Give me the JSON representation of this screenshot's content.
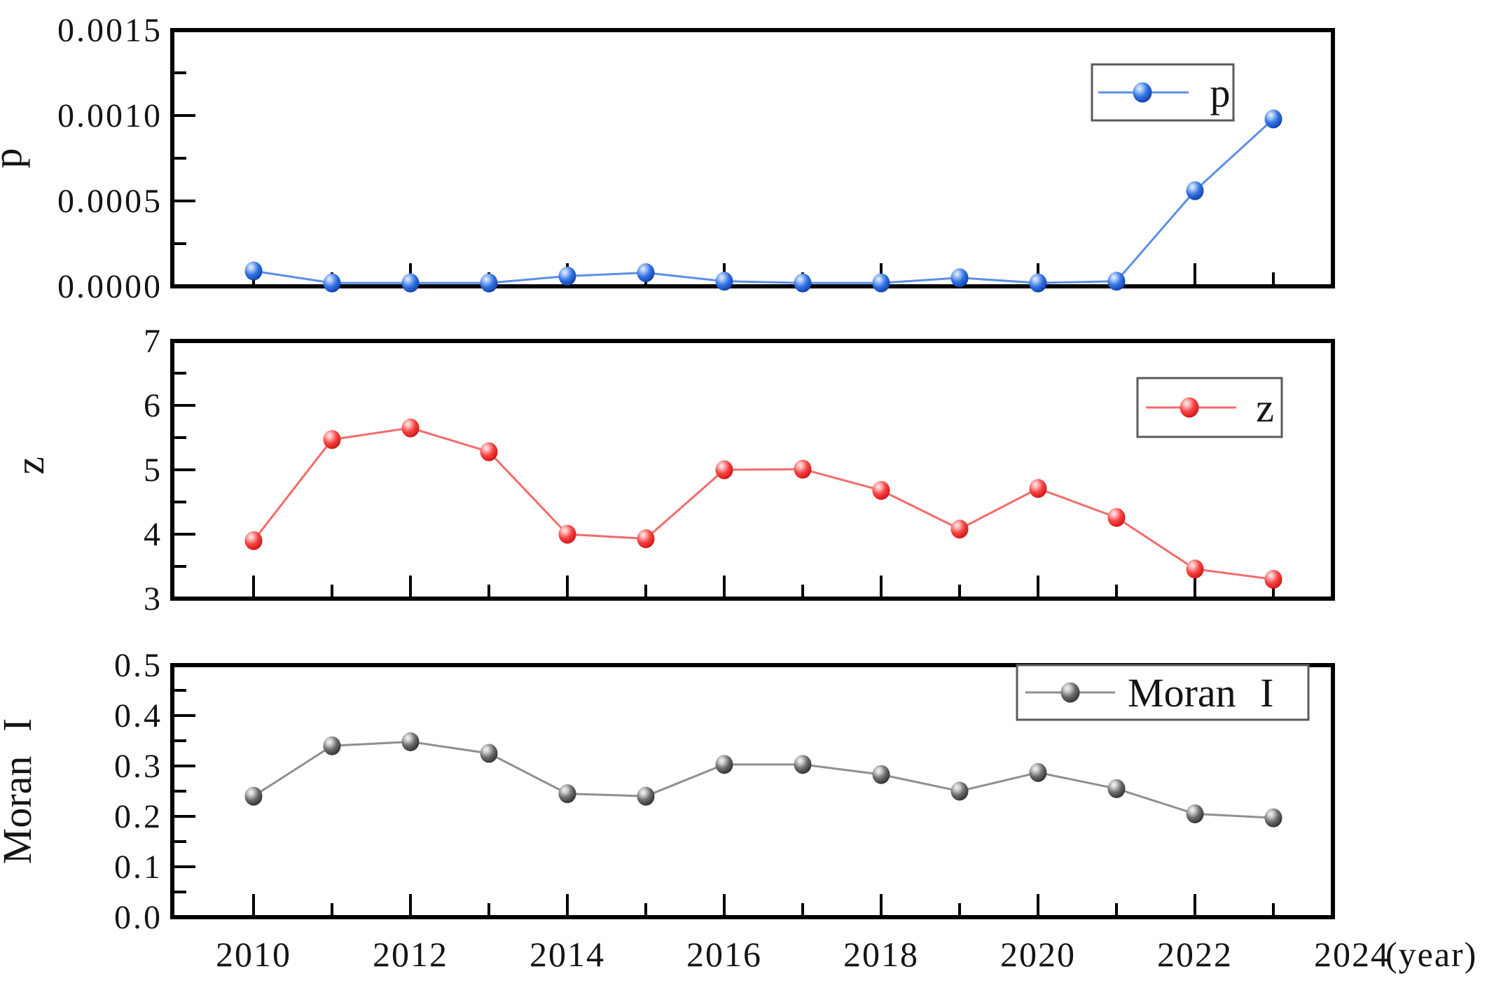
{
  "background_color": "#ffffff",
  "x_axis": {
    "years": [
      2010,
      2011,
      2012,
      2013,
      2014,
      2015,
      2016,
      2017,
      2018,
      2019,
      2020,
      2021,
      2022,
      2023
    ],
    "major_tick_years": [
      2010,
      2012,
      2014,
      2016,
      2018,
      2020,
      2022,
      2024
    ],
    "minor_tick_years": [
      2011,
      2013,
      2015,
      2017,
      2019,
      2021,
      2023
    ],
    "tick_labels": [
      "2010",
      "2012",
      "2014",
      "2016",
      "2018",
      "2020",
      "2022",
      "2024"
    ],
    "unit_label": "(year)",
    "xlim": [
      2009,
      2024
    ]
  },
  "chart_data": [
    {
      "type": "line",
      "name": "p",
      "ylabel": "p",
      "legend": {
        "label": "p",
        "position": "top-right"
      },
      "x": [
        2010,
        2011,
        2012,
        2013,
        2014,
        2015,
        2016,
        2017,
        2018,
        2019,
        2020,
        2021,
        2022,
        2023
      ],
      "y": [
        9e-05,
        2e-05,
        2e-05,
        2e-05,
        6e-05,
        8e-05,
        3e-05,
        2e-05,
        2e-05,
        5e-05,
        2e-05,
        3e-05,
        0.00056,
        0.00098
      ],
      "ylim": [
        0,
        0.0015
      ],
      "yticks": [
        0,
        0.0005,
        0.001,
        0.0015
      ],
      "ytick_labels": [
        "0.0000",
        "0.0005",
        "0.0010",
        "0.0015"
      ],
      "yticks_minor": [
        0.00025,
        0.00075,
        0.00125
      ],
      "grid": false,
      "colors": {
        "marker": "#2365e0",
        "marker_gradient": [
          "#eaf2ff",
          "#a6c4f6",
          "#3474e4",
          "#1c53c2",
          "#123f9c"
        ],
        "line": "#5b8fe8"
      }
    },
    {
      "type": "line",
      "name": "z",
      "ylabel": "z",
      "legend": {
        "label": "z",
        "position": "top-right"
      },
      "x": [
        2010,
        2011,
        2012,
        2013,
        2014,
        2015,
        2016,
        2017,
        2018,
        2019,
        2020,
        2021,
        2022,
        2023
      ],
      "y": [
        3.9,
        5.47,
        5.65,
        5.28,
        4.0,
        3.93,
        5.0,
        5.01,
        4.68,
        4.08,
        4.71,
        4.26,
        3.46,
        3.3
      ],
      "ylim": [
        3,
        7
      ],
      "yticks": [
        3,
        4,
        5,
        6,
        7
      ],
      "ytick_labels": [
        "3",
        "4",
        "5",
        "6",
        "7"
      ],
      "yticks_minor": [
        3.5,
        4.5,
        5.5,
        6.5
      ],
      "grid": false,
      "colors": {
        "marker": "#f23434",
        "marker_gradient": [
          "#ffeeee",
          "#ffb3b3",
          "#f54343",
          "#e32424",
          "#c21616"
        ],
        "line": "#f56a6a"
      }
    },
    {
      "type": "line",
      "name": "moran",
      "ylabel": "Moran I",
      "legend": {
        "label": "Moran I",
        "position": "top-right"
      },
      "x": [
        2010,
        2011,
        2012,
        2013,
        2014,
        2015,
        2016,
        2017,
        2018,
        2019,
        2020,
        2021,
        2022,
        2023
      ],
      "y": [
        0.24,
        0.34,
        0.348,
        0.325,
        0.245,
        0.24,
        0.303,
        0.303,
        0.283,
        0.25,
        0.287,
        0.255,
        0.205,
        0.197
      ],
      "ylim": [
        0,
        0.5
      ],
      "yticks": [
        0,
        0.1,
        0.2,
        0.3,
        0.4,
        0.5
      ],
      "ytick_labels": [
        "0.0",
        "0.1",
        "0.2",
        "0.3",
        "0.4",
        "0.5"
      ],
      "yticks_minor": [
        0.05,
        0.15,
        0.25,
        0.35,
        0.45
      ],
      "grid": false,
      "colors": {
        "marker": "#4f4f4f",
        "marker_gradient": [
          "#f5f5f5",
          "#cdcdcd",
          "#6e6e6e",
          "#474747",
          "#2e2e2e"
        ],
        "line": "#8f8f8f"
      }
    }
  ]
}
